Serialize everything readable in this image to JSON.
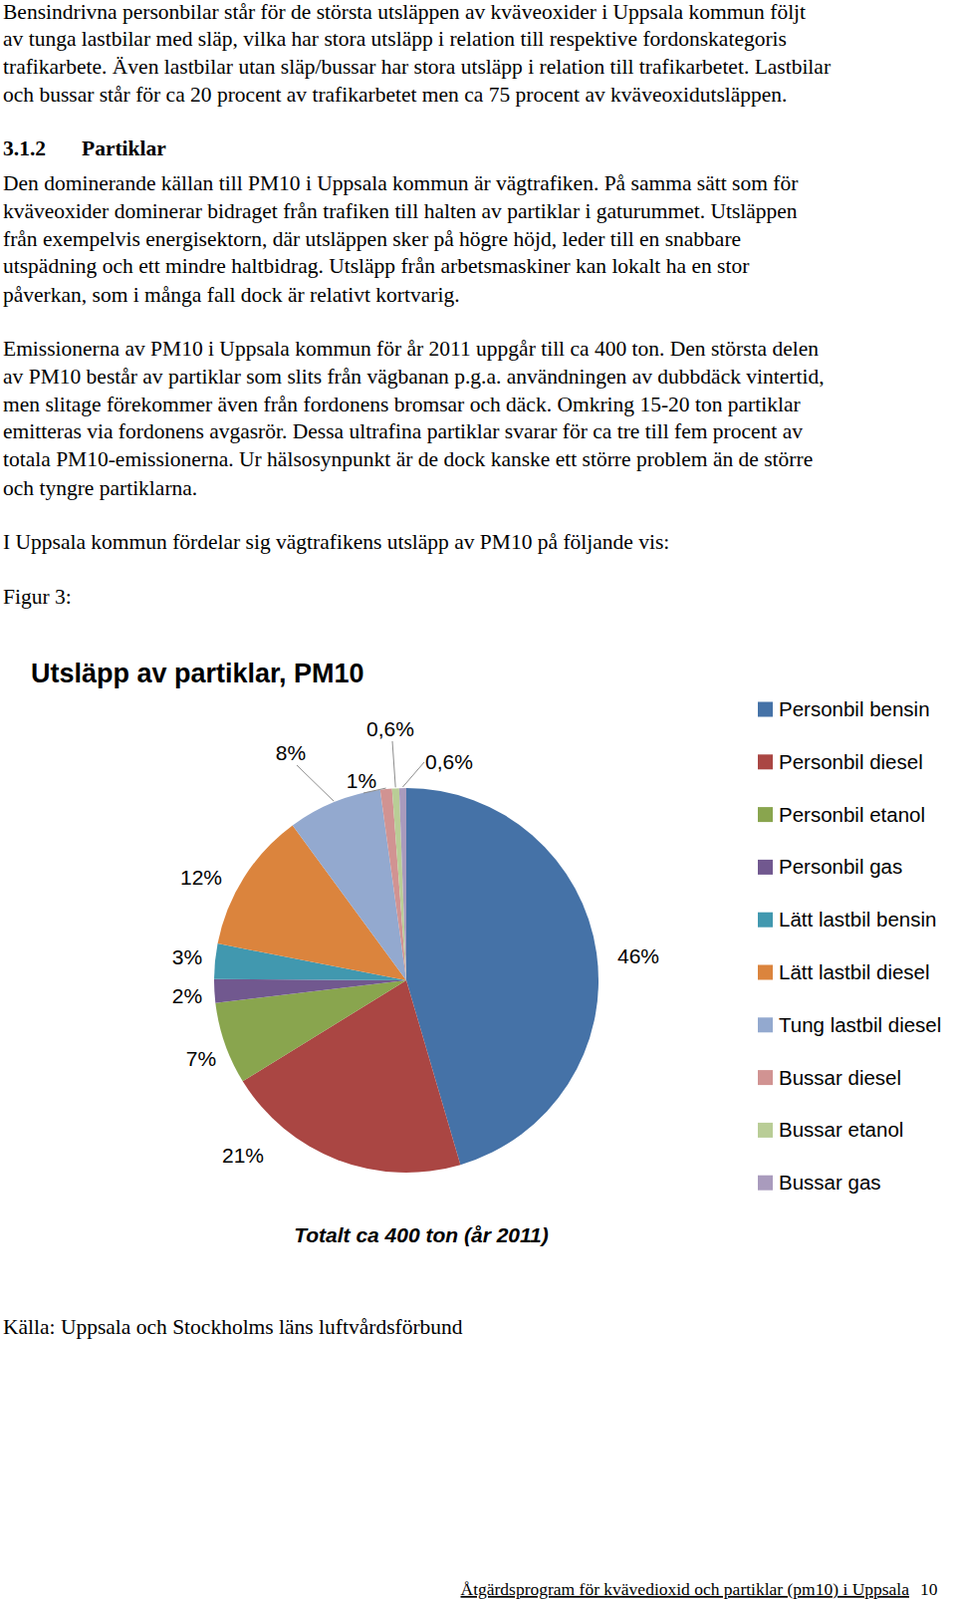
{
  "document": {
    "paragraph_1": [
      "Bensindrivna personbilar står för de största utsläppen av kväveoxider i Uppsala kommun följt",
      "av tunga lastbilar med släp, vilka har stora utsläpp i relation till respektive fordonskategoris",
      "trafikarbete. Även lastbilar utan släp/bussar har stora utsläpp i relation till trafikarbetet. Lastbilar",
      "och bussar står för ca 20 procent av trafikarbetet men ca 75 procent av kväveoxidutsläppen."
    ],
    "heading": {
      "number": "3.1.2",
      "title": "Partiklar"
    },
    "paragraph_2": [
      "Den dominerande källan till PM10 i Uppsala kommun är vägtrafiken. På samma sätt som för",
      "kväveoxider dominerar bidraget från trafiken till halten av partiklar i gaturummet. Utsläppen",
      "från exempelvis energisektorn, där utsläppen sker på högre höjd, leder till en snabbare",
      "utspädning och ett mindre haltbidrag. Utsläpp från arbetsmaskiner kan lokalt ha en stor",
      "påverkan, som i många fall dock är relativt kortvarig."
    ],
    "paragraph_3": [
      "Emissionerna av PM10 i Uppsala kommun för år 2011 uppgår till ca 400 ton. Den största delen",
      "av PM10 består av partiklar som slits från vägbanan p.g.a. användningen av dubbdäck vintertid,",
      "men slitage förekommer även från fordonens bromsar och däck. Omkring 15-20 ton partiklar",
      "emitteras via fordonens avgasrör. Dessa ultrafina partiklar svarar för ca tre till fem procent av",
      "totala PM10-emissionerna. Ur hälsosynpunkt är de dock kanske ett större problem än de större",
      "och tyngre partiklarna."
    ],
    "paragraph_4": [
      "I Uppsala kommun fördelar sig vägtrafikens utsläpp av PM10 på följande vis:"
    ],
    "figure_label": "Figur 3:",
    "source": "Källa: Uppsala och Stockholms läns luftvårdsförbund",
    "footer": {
      "title": "Åtgärdsprogram för kvävedioxid och partiklar (pm10) i Uppsala",
      "page": 10
    }
  },
  "chart_data": {
    "type": "pie",
    "title": "Utsläpp av partiklar, PM10",
    "categories": [
      "Personbil bensin",
      "Personbil diesel",
      "Personbil etanol",
      "Personbil gas",
      "Lätt lastbil bensin",
      "Lätt lastbil diesel",
      "Tung lastbil diesel",
      "Bussar diesel",
      "Bussar etanol",
      "Bussar gas"
    ],
    "values": [
      46,
      21,
      7,
      2,
      3,
      12,
      8,
      1,
      0.6,
      0.6
    ],
    "value_labels": [
      "46%",
      "21%",
      "7%",
      "2%",
      "3%",
      "12%",
      "8%",
      "1%",
      "0,6%",
      "0,6%"
    ],
    "colors": [
      "#4572A7",
      "#AA4643",
      "#89A54E",
      "#71588F",
      "#4198AF",
      "#DB843D",
      "#93A9CF",
      "#D19392",
      "#B9CD96",
      "#A99BBD"
    ],
    "data_labels": true,
    "legend": "right",
    "annotations": [
      "Totalt ca 400 ton (år 2011)"
    ]
  }
}
